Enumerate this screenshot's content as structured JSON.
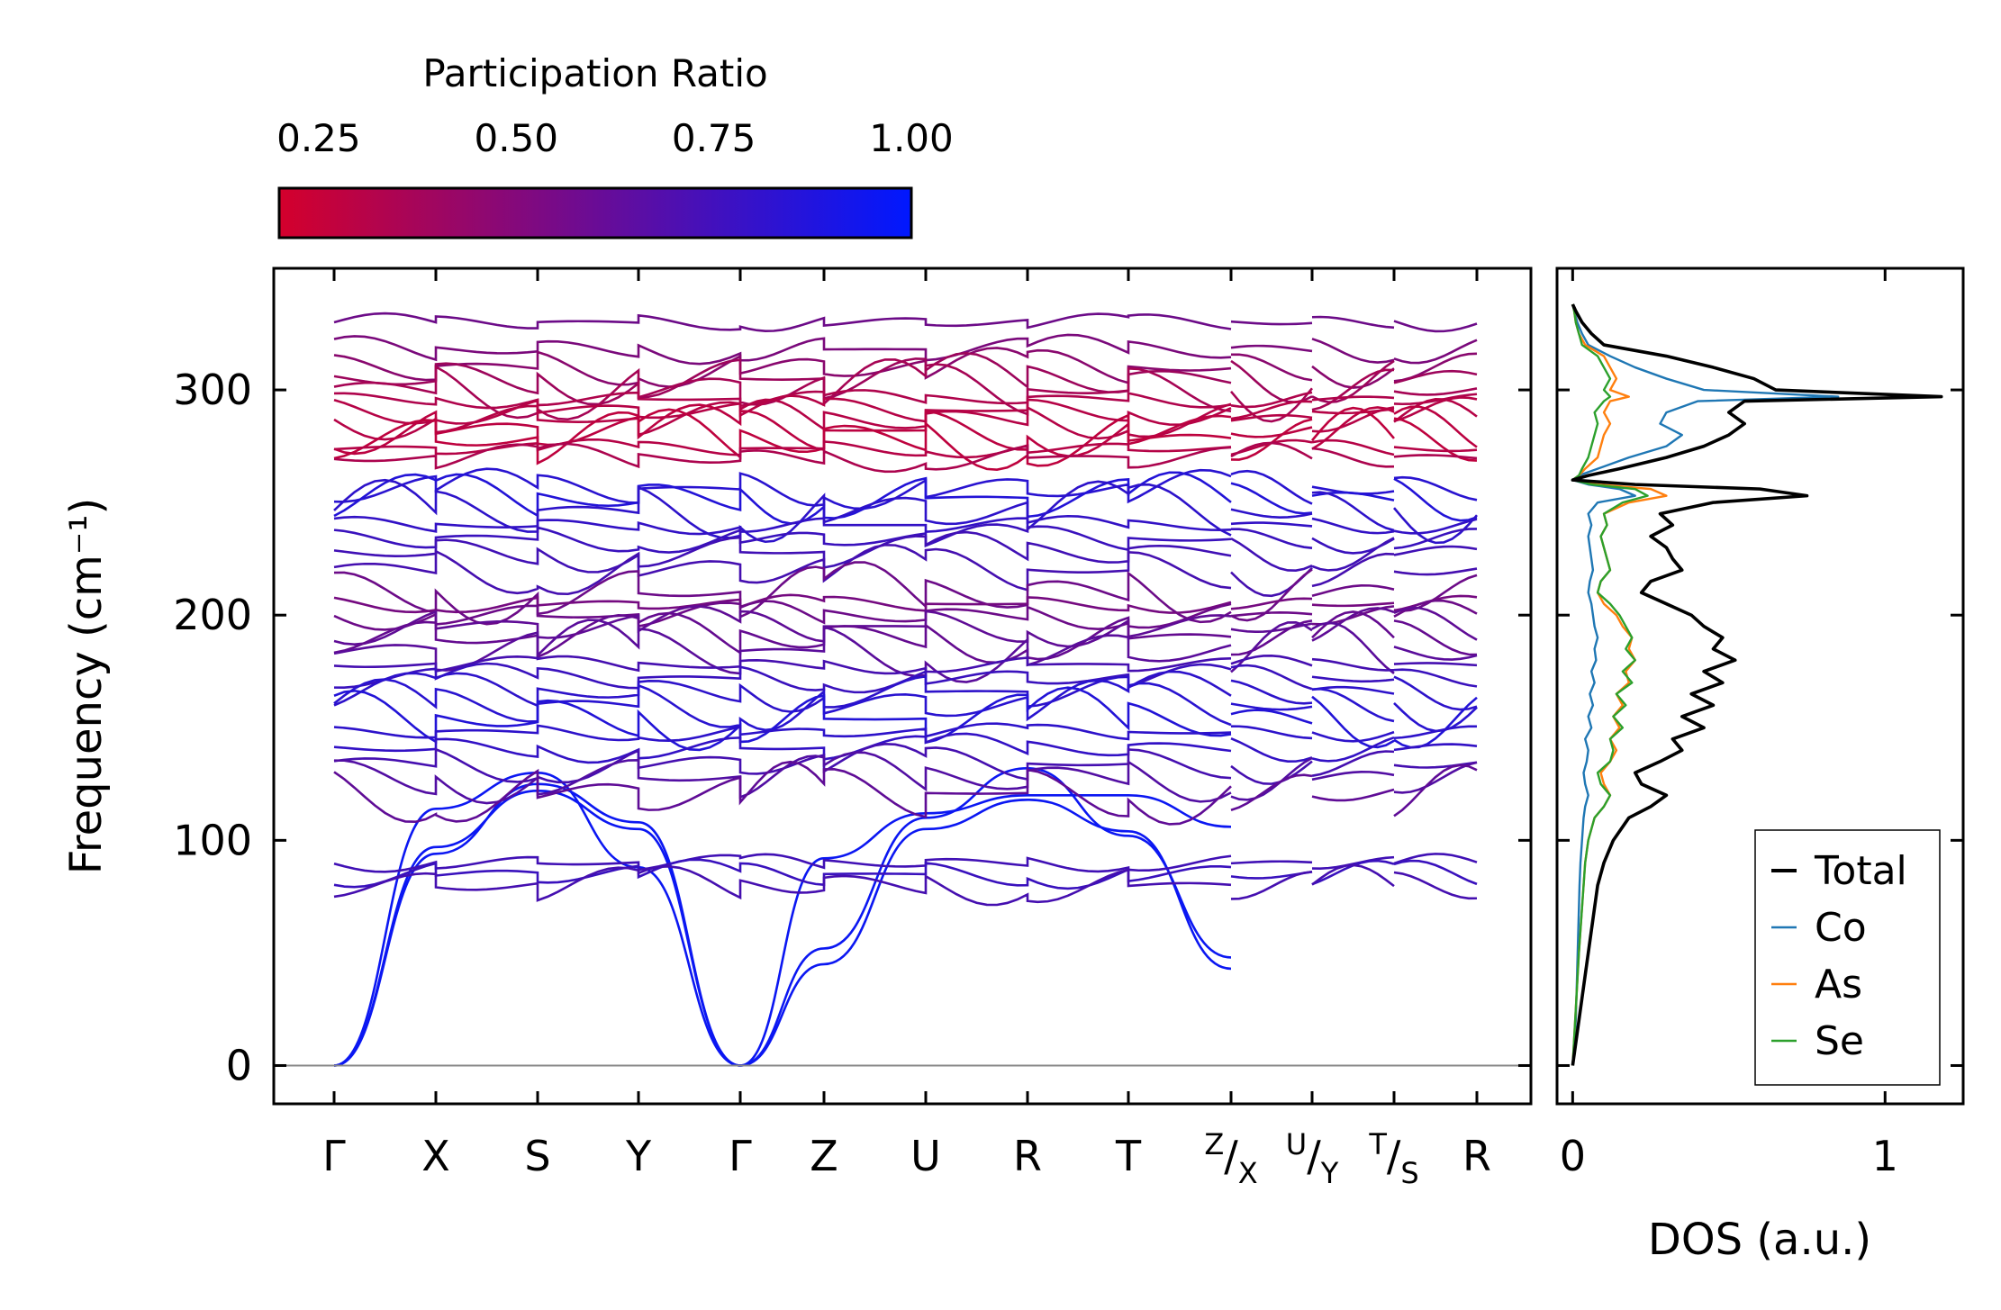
{
  "colors": {
    "low": "#d4002c",
    "high": "#0018ff",
    "total": "#000000",
    "co": "#1f77b4",
    "as": "#ff7f0e",
    "se": "#2ca02c",
    "zero_line": "#888888"
  },
  "colorbar": {
    "title": "Participation Ratio",
    "range": [
      0.2,
      1.0
    ],
    "tick_labels": [
      "0.25",
      "0.50",
      "0.75",
      "1.00"
    ],
    "tick_values": [
      0.25,
      0.5,
      0.75,
      1.0
    ]
  },
  "chart_data": [
    {
      "type": "line",
      "title": "",
      "xlabel": "",
      "ylabel": "Frequency (cm⁻¹)",
      "ylim": [
        -17,
        354
      ],
      "y_ticks": [
        0,
        100,
        200,
        300
      ],
      "y_tick_labels": [
        "0",
        "100",
        "200",
        "300"
      ],
      "path_labels": [
        {
          "main": "Γ"
        },
        {
          "main": "X"
        },
        {
          "main": "S"
        },
        {
          "main": "Y"
        },
        {
          "main": "Γ"
        },
        {
          "main": "Z"
        },
        {
          "main": "U"
        },
        {
          "main": "R"
        },
        {
          "main": "T"
        },
        {
          "sup": "Z",
          "sub": "X"
        },
        {
          "sup": "U",
          "sub": "Y"
        },
        {
          "sup": "T",
          "sub": "S"
        },
        {
          "main": "R"
        }
      ],
      "segments": [
        {
          "from": "Γ",
          "to": "X"
        },
        {
          "from": "X",
          "to": "S"
        },
        {
          "from": "S",
          "to": "Y"
        },
        {
          "from": "Y",
          "to": "Γ"
        },
        {
          "from": "Γ",
          "to": "Z"
        },
        {
          "from": "Z",
          "to": "U"
        },
        {
          "from": "U",
          "to": "R"
        },
        {
          "from": "R",
          "to": "T"
        },
        {
          "from": "T",
          "to": "Z"
        },
        {
          "from": "X",
          "to": "U"
        },
        {
          "from": "Y",
          "to": "T"
        },
        {
          "from": "S",
          "to": "R"
        }
      ],
      "acoustic_branches": [
        {
          "points": [
            [
              0,
              0
            ],
            [
              1,
              94
            ],
            [
              2,
              125
            ],
            [
              3,
              108
            ],
            [
              4,
              0
            ]
          ]
        },
        {
          "points": [
            [
              0,
              0
            ],
            [
              1,
              97
            ],
            [
              2,
              122
            ],
            [
              3,
              105
            ],
            [
              4,
              0
            ]
          ]
        },
        {
          "points": [
            [
              0,
              0
            ],
            [
              1,
              114
            ],
            [
              2,
              130
            ],
            [
              3,
              88
            ],
            [
              4,
              0
            ]
          ]
        },
        {
          "points": [
            [
              4,
              0
            ],
            [
              5,
              45
            ],
            [
              6,
              105
            ],
            [
              7,
              118
            ],
            [
              8,
              104
            ],
            [
              9,
              43
            ]
          ]
        },
        {
          "points": [
            [
              4,
              0
            ],
            [
              5,
              52
            ],
            [
              6,
              110
            ],
            [
              7,
              132
            ],
            [
              8,
              102
            ],
            [
              9,
              48
            ]
          ]
        },
        {
          "points": [
            [
              4,
              0
            ],
            [
              5,
              92
            ],
            [
              6,
              112
            ],
            [
              7,
              120
            ],
            [
              8,
              120
            ],
            [
              9,
              106
            ]
          ]
        }
      ],
      "band_structure_note": "Optical branches span 80–335 cm⁻¹; low participation (0.2–0.5) modes cluster at 265–310 cm⁻¹, high participation (0.75–1.0) modes at 140–260 cm⁻¹.",
      "optical_levels": [
        {
          "f": 330,
          "p": 0.55
        },
        {
          "f": 318,
          "p": 0.5
        },
        {
          "f": 310,
          "p": 0.45
        },
        {
          "f": 305,
          "p": 0.38
        },
        {
          "f": 300,
          "p": 0.35
        },
        {
          "f": 296,
          "p": 0.32
        },
        {
          "f": 291,
          "p": 0.3
        },
        {
          "f": 287,
          "p": 0.3
        },
        {
          "f": 282,
          "p": 0.28
        },
        {
          "f": 278,
          "p": 0.27
        },
        {
          "f": 274,
          "p": 0.3
        },
        {
          "f": 270,
          "p": 0.33
        },
        {
          "f": 256,
          "p": 0.82
        },
        {
          "f": 252,
          "p": 0.85
        },
        {
          "f": 246,
          "p": 0.8
        },
        {
          "f": 240,
          "p": 0.78
        },
        {
          "f": 234,
          "p": 0.75
        },
        {
          "f": 228,
          "p": 0.72
        },
        {
          "f": 220,
          "p": 0.7
        },
        {
          "f": 210,
          "p": 0.55
        },
        {
          "f": 205,
          "p": 0.52
        },
        {
          "f": 200,
          "p": 0.55
        },
        {
          "f": 195,
          "p": 0.6
        },
        {
          "f": 190,
          "p": 0.58
        },
        {
          "f": 184,
          "p": 0.62
        },
        {
          "f": 178,
          "p": 0.7
        },
        {
          "f": 172,
          "p": 0.75
        },
        {
          "f": 166,
          "p": 0.8
        },
        {
          "f": 160,
          "p": 0.82
        },
        {
          "f": 154,
          "p": 0.85
        },
        {
          "f": 148,
          "p": 0.8
        },
        {
          "f": 141,
          "p": 0.78
        },
        {
          "f": 134,
          "p": 0.7
        },
        {
          "f": 128,
          "p": 0.65
        },
        {
          "f": 121,
          "p": 0.6
        },
        {
          "f": 90,
          "p": 0.72
        },
        {
          "f": 85,
          "p": 0.75
        },
        {
          "f": 80,
          "p": 0.7
        }
      ]
    },
    {
      "type": "line",
      "title": "",
      "xlabel": "DOS (a.u.)",
      "ylabel": "",
      "xlim": [
        -0.05,
        1.25
      ],
      "ylim": [
        -17,
        354
      ],
      "x_ticks": [
        0,
        1
      ],
      "x_tick_labels": [
        "0",
        "1"
      ],
      "legend": "bottom-right",
      "freq": [
        0,
        10,
        20,
        30,
        40,
        50,
        60,
        70,
        80,
        90,
        100,
        110,
        115,
        120,
        125,
        130,
        135,
        140,
        145,
        150,
        155,
        160,
        165,
        170,
        175,
        180,
        185,
        190,
        195,
        200,
        205,
        210,
        215,
        220,
        225,
        230,
        235,
        240,
        245,
        250,
        253,
        256,
        258,
        260,
        262,
        265,
        270,
        275,
        280,
        285,
        290,
        295,
        297,
        300,
        305,
        310,
        315,
        320,
        325,
        330,
        335,
        338
      ],
      "series": [
        {
          "name": "Total",
          "color_key": "total",
          "values": [
            0,
            0.01,
            0.02,
            0.03,
            0.04,
            0.05,
            0.06,
            0.07,
            0.08,
            0.1,
            0.13,
            0.18,
            0.25,
            0.3,
            0.22,
            0.2,
            0.28,
            0.35,
            0.32,
            0.42,
            0.35,
            0.45,
            0.38,
            0.48,
            0.42,
            0.52,
            0.45,
            0.48,
            0.42,
            0.38,
            0.3,
            0.22,
            0.25,
            0.35,
            0.32,
            0.3,
            0.25,
            0.32,
            0.28,
            0.45,
            0.75,
            0.6,
            0.2,
            0.0,
            0.05,
            0.15,
            0.3,
            0.42,
            0.5,
            0.55,
            0.5,
            0.55,
            1.18,
            0.65,
            0.58,
            0.45,
            0.3,
            0.1,
            0.06,
            0.03,
            0.01,
            0
          ]
        },
        {
          "name": "Co",
          "color_key": "co",
          "values": [
            0,
            0.005,
            0.01,
            0.012,
            0.014,
            0.016,
            0.018,
            0.02,
            0.022,
            0.025,
            0.03,
            0.035,
            0.04,
            0.05,
            0.04,
            0.035,
            0.045,
            0.05,
            0.04,
            0.06,
            0.05,
            0.065,
            0.055,
            0.07,
            0.06,
            0.075,
            0.07,
            0.08,
            0.07,
            0.065,
            0.06,
            0.05,
            0.055,
            0.065,
            0.06,
            0.055,
            0.05,
            0.06,
            0.05,
            0.08,
            0.2,
            0.15,
            0.05,
            0.0,
            0.02,
            0.08,
            0.18,
            0.3,
            0.35,
            0.28,
            0.3,
            0.4,
            0.85,
            0.42,
            0.3,
            0.2,
            0.12,
            0.05,
            0.03,
            0.015,
            0.005,
            0
          ]
        },
        {
          "name": "As",
          "color_key": "as",
          "values": [
            0,
            0.004,
            0.008,
            0.012,
            0.016,
            0.02,
            0.025,
            0.03,
            0.035,
            0.04,
            0.05,
            0.07,
            0.1,
            0.12,
            0.1,
            0.09,
            0.12,
            0.14,
            0.12,
            0.15,
            0.13,
            0.16,
            0.14,
            0.18,
            0.17,
            0.2,
            0.18,
            0.19,
            0.16,
            0.14,
            0.1,
            0.08,
            0.09,
            0.12,
            0.11,
            0.1,
            0.09,
            0.11,
            0.1,
            0.18,
            0.3,
            0.25,
            0.08,
            0.0,
            0.02,
            0.04,
            0.08,
            0.09,
            0.1,
            0.12,
            0.1,
            0.12,
            0.18,
            0.12,
            0.14,
            0.12,
            0.1,
            0.04,
            0.02,
            0.01,
            0.005,
            0
          ]
        },
        {
          "name": "Se",
          "color_key": "se",
          "values": [
            0,
            0.004,
            0.008,
            0.012,
            0.016,
            0.02,
            0.025,
            0.03,
            0.035,
            0.04,
            0.05,
            0.07,
            0.1,
            0.12,
            0.09,
            0.08,
            0.12,
            0.13,
            0.12,
            0.16,
            0.13,
            0.17,
            0.14,
            0.19,
            0.16,
            0.2,
            0.17,
            0.19,
            0.17,
            0.15,
            0.12,
            0.08,
            0.09,
            0.12,
            0.11,
            0.1,
            0.09,
            0.11,
            0.1,
            0.16,
            0.24,
            0.2,
            0.06,
            0.0,
            0.02,
            0.03,
            0.05,
            0.06,
            0.07,
            0.08,
            0.07,
            0.1,
            0.12,
            0.1,
            0.12,
            0.1,
            0.08,
            0.03,
            0.02,
            0.01,
            0.005,
            0
          ]
        }
      ]
    }
  ]
}
